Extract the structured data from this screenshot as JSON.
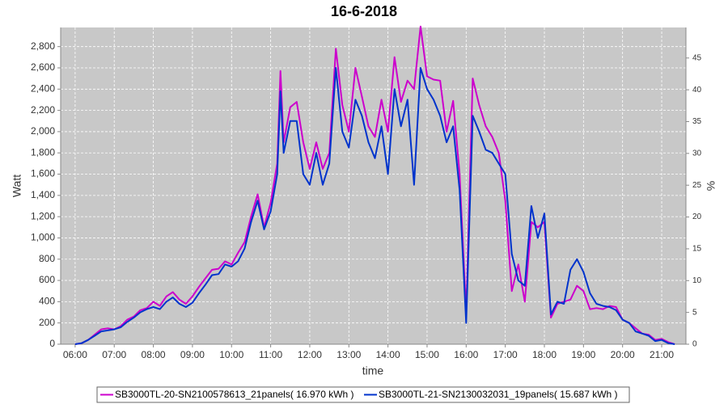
{
  "chart_data": {
    "type": "line",
    "title": "16-6-2018",
    "x_label": "time",
    "y_label": "Watt",
    "y2_label": "%",
    "x": [
      6,
      6.167,
      6.333,
      6.5,
      6.667,
      6.833,
      7,
      7.167,
      7.333,
      7.5,
      7.667,
      7.833,
      8,
      8.167,
      8.333,
      8.5,
      8.667,
      8.833,
      9,
      9.167,
      9.333,
      9.5,
      9.667,
      9.833,
      10,
      10.167,
      10.333,
      10.5,
      10.667,
      10.833,
      11,
      11.167,
      11.25,
      11.333,
      11.5,
      11.667,
      11.833,
      12,
      12.167,
      12.333,
      12.5,
      12.667,
      12.833,
      13,
      13.167,
      13.333,
      13.5,
      13.667,
      13.833,
      14,
      14.167,
      14.333,
      14.5,
      14.667,
      14.833,
      15,
      15.167,
      15.333,
      15.5,
      15.667,
      15.833,
      16,
      16.167,
      16.333,
      16.5,
      16.667,
      16.833,
      17,
      17.167,
      17.333,
      17.5,
      17.667,
      17.833,
      18,
      18.167,
      18.333,
      18.5,
      18.667,
      18.833,
      19,
      19.167,
      19.333,
      19.5,
      19.667,
      19.833,
      20,
      20.167,
      20.333,
      20.5,
      20.667,
      20.833,
      21,
      21.167,
      21.333
    ],
    "series": [
      {
        "name": "SB3000TL-20-SN2100578613_21panels( 16.970 kWh )",
        "color": "#cc00cc",
        "values": [
          0,
          10,
          40,
          90,
          140,
          150,
          140,
          170,
          230,
          260,
          320,
          340,
          400,
          360,
          450,
          490,
          420,
          380,
          450,
          540,
          620,
          700,
          710,
          780,
          750,
          860,
          960,
          1200,
          1410,
          1100,
          1330,
          1700,
          2570,
          1900,
          2230,
          2280,
          1900,
          1650,
          1900,
          1650,
          1800,
          2780,
          2250,
          2000,
          2600,
          2330,
          2050,
          1950,
          2300,
          2000,
          2700,
          2280,
          2480,
          2400,
          2990,
          2520,
          2490,
          2480,
          2000,
          2290,
          1600,
          300,
          2500,
          2250,
          2050,
          1950,
          1800,
          1350,
          500,
          750,
          400,
          1150,
          1100,
          1150,
          250,
          380,
          400,
          420,
          550,
          500,
          330,
          340,
          330,
          360,
          350,
          230,
          200,
          150,
          100,
          90,
          40,
          50,
          20,
          0
        ]
      },
      {
        "name": "SB3000TL-21-SN2130032031_19panels( 15.687 kWh )",
        "color": "#0033cc",
        "values": [
          0,
          10,
          40,
          80,
          120,
          130,
          140,
          160,
          210,
          250,
          300,
          330,
          350,
          330,
          400,
          440,
          380,
          350,
          390,
          480,
          560,
          650,
          660,
          750,
          730,
          780,
          900,
          1150,
          1350,
          1080,
          1250,
          1600,
          2380,
          1800,
          2100,
          2100,
          1600,
          1500,
          1800,
          1500,
          1700,
          2600,
          2000,
          1850,
          2300,
          2150,
          1900,
          1750,
          2050,
          1600,
          2400,
          2050,
          2300,
          1500,
          2600,
          2400,
          2300,
          2150,
          1900,
          2050,
          1450,
          200,
          2150,
          2000,
          1830,
          1800,
          1700,
          1600,
          850,
          600,
          550,
          1300,
          1000,
          1230,
          280,
          400,
          380,
          700,
          800,
          680,
          480,
          380,
          360,
          350,
          320,
          230,
          200,
          120,
          100,
          80,
          30,
          40,
          10,
          0
        ]
      }
    ],
    "xlim": [
      5.63,
      21.62
    ],
    "xticks": [
      {
        "value": 6,
        "label": "06:00"
      },
      {
        "value": 7,
        "label": "07:00"
      },
      {
        "value": 8,
        "label": "08:00"
      },
      {
        "value": 9,
        "label": "09:00"
      },
      {
        "value": 10,
        "label": "10:00"
      },
      {
        "value": 11,
        "label": "11:00"
      },
      {
        "value": 12,
        "label": "12:00"
      },
      {
        "value": 13,
        "label": "13:00"
      },
      {
        "value": 14,
        "label": "14:00"
      },
      {
        "value": 15,
        "label": "15:00"
      },
      {
        "value": 16,
        "label": "16:00"
      },
      {
        "value": 17,
        "label": "17:00"
      },
      {
        "value": 18,
        "label": "18:00"
      },
      {
        "value": 19,
        "label": "19:00"
      },
      {
        "value": 20,
        "label": "20:00"
      },
      {
        "value": 21,
        "label": "21:00"
      }
    ],
    "ylim": [
      0,
      2980
    ],
    "yticks": [
      0,
      200,
      400,
      600,
      800,
      {
        "value": 1000,
        "label": "1,000"
      },
      {
        "value": 1200,
        "label": "1,200"
      },
      {
        "value": 1400,
        "label": "1,400"
      },
      {
        "value": 1600,
        "label": "1,600"
      },
      {
        "value": 1800,
        "label": "1,800"
      },
      {
        "value": 2000,
        "label": "2,000"
      },
      {
        "value": 2200,
        "label": "2,200"
      },
      {
        "value": 2400,
        "label": "2,400"
      },
      {
        "value": 2600,
        "label": "2,600"
      },
      {
        "value": 2800,
        "label": "2,800"
      }
    ],
    "y2lim": [
      0,
      49.8
    ],
    "y2ticks": [
      0,
      5,
      10,
      15,
      20,
      25,
      30,
      35,
      40,
      45
    ],
    "grid": true
  }
}
